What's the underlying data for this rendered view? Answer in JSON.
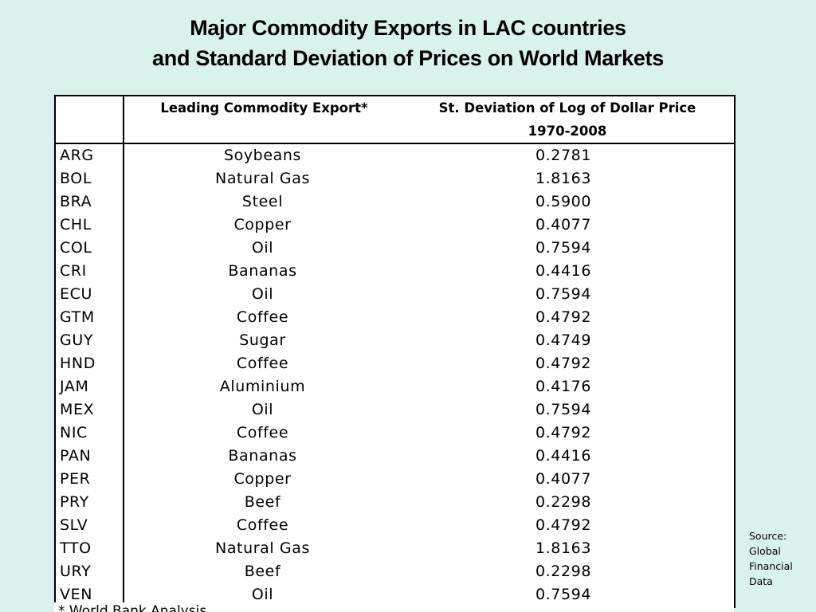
{
  "title": {
    "line1": "Major Commodity Exports in LAC countries",
    "line2": "and Standard Deviation of Prices on World Markets"
  },
  "table": {
    "headers": {
      "code": "",
      "export": "Leading Commodity Export*",
      "std_line1": "St. Deviation of Log of Dollar Price",
      "std_line2": "1970-2008"
    },
    "rows": [
      {
        "code": "ARG",
        "export": "Soybeans",
        "std": "0.2781"
      },
      {
        "code": "BOL",
        "export": "Natural Gas",
        "std": "1.8163"
      },
      {
        "code": "BRA",
        "export": "Steel",
        "std": "0.5900"
      },
      {
        "code": "CHL",
        "export": "Copper",
        "std": "0.4077"
      },
      {
        "code": "COL",
        "export": "Oil",
        "std": "0.7594"
      },
      {
        "code": "CRI",
        "export": "Bananas",
        "std": "0.4416"
      },
      {
        "code": "ECU",
        "export": "Oil",
        "std": "0.7594"
      },
      {
        "code": "GTM",
        "export": "Coffee",
        "std": "0.4792"
      },
      {
        "code": "GUY",
        "export": "Sugar",
        "std": "0.4749"
      },
      {
        "code": "HND",
        "export": "Coffee",
        "std": "0.4792"
      },
      {
        "code": "JAM",
        "export": "Aluminium",
        "std": "0.4176"
      },
      {
        "code": "MEX",
        "export": "Oil",
        "std": "0.7594"
      },
      {
        "code": "NIC",
        "export": "Coffee",
        "std": "0.4792"
      },
      {
        "code": "PAN",
        "export": "Bananas",
        "std": "0.4416"
      },
      {
        "code": "PER",
        "export": "Copper",
        "std": "0.4077"
      },
      {
        "code": "PRY",
        "export": "Beef",
        "std": "0.2298"
      },
      {
        "code": "SLV",
        "export": "Coffee",
        "std": "0.4792"
      },
      {
        "code": "TTO",
        "export": "Natural Gas",
        "std": "1.8163"
      },
      {
        "code": "URY",
        "export": "Beef",
        "std": "0.2298"
      },
      {
        "code": "VEN",
        "export": "Oil",
        "std": "0.7594"
      }
    ]
  },
  "footnote": "* World Bank Analysis",
  "source": {
    "line1": "Source:",
    "line2": "Global",
    "line3": "Financial",
    "line4": "Data"
  }
}
